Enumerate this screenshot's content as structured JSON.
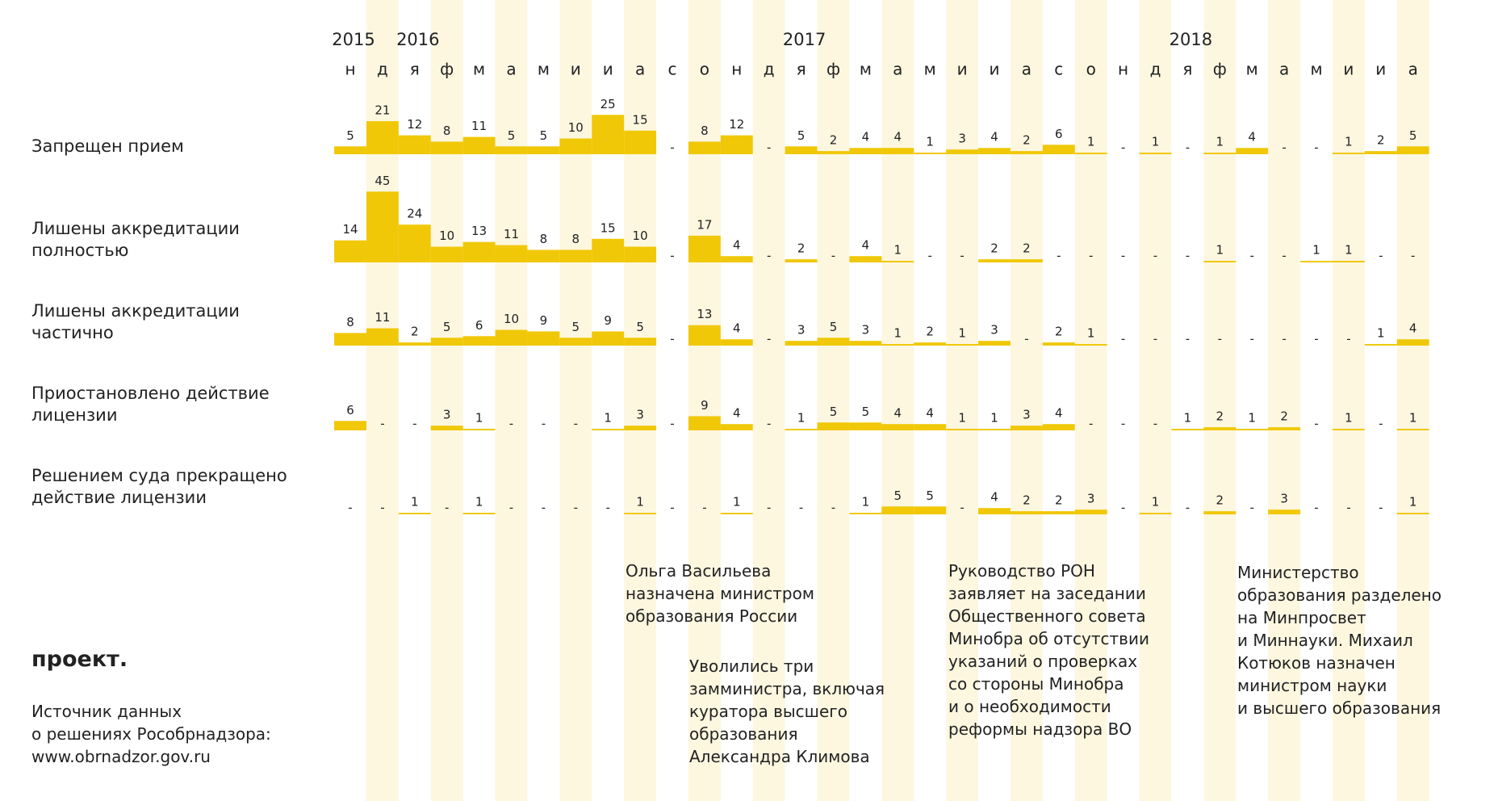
{
  "chart_data": {
    "type": "bar",
    "categories": [
      "н",
      "д",
      "я",
      "ф",
      "м",
      "а",
      "м",
      "и",
      "и",
      "а",
      "с",
      "о",
      "н",
      "д",
      "я",
      "ф",
      "м",
      "а",
      "м",
      "и",
      "и",
      "а",
      "с",
      "о",
      "н",
      "д",
      "я",
      "ф",
      "м",
      "а",
      "м",
      "и",
      "и",
      "а"
    ],
    "x_groups": [
      {
        "label": "2015",
        "start": 0
      },
      {
        "label": "2016",
        "start": 2
      },
      {
        "label": "2017",
        "start": 14
      },
      {
        "label": "2018",
        "start": 26
      }
    ],
    "color": "#f0c808",
    "series": [
      {
        "name": "Запрещен прием",
        "values": [
          5,
          21,
          12,
          8,
          11,
          5,
          5,
          10,
          25,
          15,
          null,
          8,
          12,
          null,
          5,
          2,
          4,
          4,
          1,
          3,
          4,
          2,
          6,
          1,
          null,
          1,
          null,
          1,
          4,
          null,
          null,
          1,
          2,
          5
        ],
        "value_labels": [
          null,
          null,
          null,
          null,
          null,
          null,
          null,
          null,
          null,
          null,
          "-",
          null,
          null,
          "-",
          null,
          null,
          null,
          null,
          null,
          null,
          null,
          null,
          null,
          null,
          "-",
          null,
          "-",
          null,
          null,
          "-",
          "-",
          null,
          null,
          null
        ]
      },
      {
        "name": "Лишены аккредитации\nполностью",
        "values": [
          14,
          45,
          24,
          10,
          13,
          11,
          8,
          8,
          15,
          10,
          null,
          17,
          4,
          null,
          2,
          null,
          4,
          1,
          null,
          null,
          2,
          2,
          null,
          null,
          null,
          null,
          null,
          1,
          null,
          null,
          1,
          1,
          null,
          null
        ],
        "value_labels": [
          null,
          null,
          null,
          null,
          null,
          null,
          null,
          null,
          null,
          null,
          "-",
          null,
          null,
          "-",
          null,
          "-",
          null,
          null,
          "-",
          "-",
          null,
          null,
          "-",
          "-",
          "-",
          "-",
          "-",
          null,
          "-",
          "-",
          null,
          null,
          "-",
          "-"
        ]
      },
      {
        "name": "Лишены аккредитации\nчастично",
        "values": [
          8,
          11,
          2,
          5,
          6,
          10,
          9,
          5,
          9,
          5,
          null,
          13,
          4,
          null,
          3,
          5,
          3,
          1,
          2,
          1,
          3,
          null,
          2,
          1,
          null,
          null,
          null,
          null,
          null,
          null,
          null,
          null,
          1,
          4
        ],
        "value_labels": [
          null,
          null,
          null,
          null,
          null,
          null,
          null,
          null,
          null,
          null,
          "-",
          null,
          null,
          "-",
          null,
          null,
          null,
          null,
          null,
          null,
          null,
          "-",
          null,
          null,
          "-",
          "-",
          "-",
          "-",
          "-",
          "-",
          "-",
          "-",
          null,
          null
        ]
      },
      {
        "name": "Приостановлено действие\nлицензии",
        "values": [
          6,
          null,
          null,
          3,
          1,
          null,
          null,
          null,
          1,
          3,
          null,
          9,
          4,
          null,
          1,
          5,
          5,
          4,
          4,
          1,
          1,
          3,
          4,
          null,
          null,
          null,
          1,
          2,
          1,
          2,
          null,
          1,
          null,
          1
        ],
        "value_labels": [
          null,
          "-",
          "-",
          null,
          null,
          "-",
          "-",
          "-",
          null,
          null,
          "-",
          null,
          null,
          "-",
          null,
          null,
          null,
          null,
          null,
          null,
          null,
          null,
          null,
          "-",
          "-",
          "-",
          null,
          null,
          null,
          null,
          "-",
          null,
          "-",
          null
        ]
      },
      {
        "name": "Решением суда прекращено\nдействие лицензии",
        "values": [
          null,
          null,
          1,
          null,
          1,
          null,
          null,
          null,
          null,
          1,
          null,
          null,
          1,
          null,
          null,
          null,
          1,
          5,
          5,
          null,
          4,
          2,
          2,
          3,
          null,
          1,
          null,
          2,
          null,
          3,
          null,
          null,
          null,
          1
        ],
        "value_labels": [
          "-",
          "-",
          null,
          "-",
          null,
          "-",
          "-",
          "-",
          "-",
          null,
          "-",
          "-",
          null,
          "-",
          "-",
          "-",
          null,
          null,
          null,
          "-",
          null,
          null,
          null,
          null,
          "-",
          null,
          "-",
          null,
          "-",
          null,
          "-",
          "-",
          "-",
          null
        ]
      }
    ],
    "annotations": [
      "Ольга Васильева\nназначена министром\nобразования России",
      "Уволились три\nзамминистра, включая\nкуратора высшего\nобразования\nАлександра Климова",
      "Руководство РОН\nзаявляет на заседании\nОбщественного совета\nМинобра об отсутствии\nуказаний о проверках\nсо стороны Минобра\nи о необходимости\nреформы надзора ВО",
      "Министерство\nобразования разделено\nна Минпросвет\nи Миннауки. Михаил\nКотюков назначен\nминистром науки\nи высшего образования"
    ],
    "brand": "проект.",
    "source": "Источник данных\nо решениях Рособрнадзора:\nwww.obrnadzor.gov.ru"
  }
}
